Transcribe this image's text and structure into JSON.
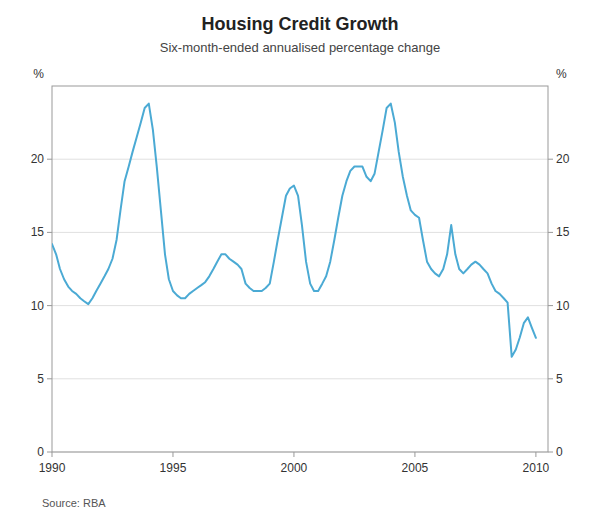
{
  "chart_data": {
    "type": "line",
    "title": "Housing Credit Growth",
    "subtitle": "Six-month-ended annualised percentage change",
    "source": "Source: RBA",
    "color": "#4BAAD4",
    "ylabel": "%",
    "y2label": "%",
    "grid": true,
    "xlim": [
      1990.0,
      2010.5
    ],
    "xticks": [
      1990,
      1995,
      2000,
      2005,
      2010
    ],
    "ylim": [
      0,
      25
    ],
    "yticks": [
      0,
      5,
      10,
      15,
      20
    ],
    "y2lim": [
      0,
      25
    ],
    "y2ticks": [
      0,
      5,
      10,
      15,
      20
    ],
    "x": [
      1990.0,
      1990.17,
      1990.33,
      1990.5,
      1990.67,
      1990.83,
      1991.0,
      1991.17,
      1991.33,
      1991.5,
      1991.67,
      1991.83,
      1992.0,
      1992.17,
      1992.33,
      1992.5,
      1992.67,
      1992.83,
      1993.0,
      1993.17,
      1993.33,
      1993.5,
      1993.67,
      1993.83,
      1994.0,
      1994.17,
      1994.33,
      1994.5,
      1994.67,
      1994.83,
      1995.0,
      1995.17,
      1995.33,
      1995.5,
      1995.67,
      1995.83,
      1996.0,
      1996.17,
      1996.33,
      1996.5,
      1996.67,
      1996.83,
      1997.0,
      1997.17,
      1997.33,
      1997.5,
      1997.67,
      1997.83,
      1998.0,
      1998.17,
      1998.33,
      1998.5,
      1998.67,
      1998.83,
      1999.0,
      1999.17,
      1999.33,
      1999.5,
      1999.67,
      1999.83,
      2000.0,
      2000.17,
      2000.33,
      2000.5,
      2000.67,
      2000.83,
      2001.0,
      2001.17,
      2001.33,
      2001.5,
      2001.67,
      2001.83,
      2002.0,
      2002.17,
      2002.33,
      2002.5,
      2002.67,
      2002.83,
      2003.0,
      2003.17,
      2003.33,
      2003.5,
      2003.67,
      2003.83,
      2004.0,
      2004.17,
      2004.33,
      2004.5,
      2004.67,
      2004.83,
      2005.0,
      2005.17,
      2005.33,
      2005.5,
      2005.67,
      2005.83,
      2006.0,
      2006.17,
      2006.33,
      2006.5,
      2006.67,
      2006.83,
      2007.0,
      2007.17,
      2007.33,
      2007.5,
      2007.67,
      2007.83,
      2008.0,
      2008.17,
      2008.33,
      2008.5,
      2008.67,
      2008.83,
      2009.0,
      2009.17,
      2009.33,
      2009.5,
      2009.67,
      2009.83,
      2010.0
    ],
    "values": [
      14.2,
      13.5,
      12.5,
      11.8,
      11.3,
      11.0,
      10.8,
      10.5,
      10.3,
      10.1,
      10.5,
      11.0,
      11.5,
      12.0,
      12.5,
      13.2,
      14.5,
      16.5,
      18.5,
      19.5,
      20.5,
      21.5,
      22.5,
      23.5,
      23.8,
      22.0,
      19.5,
      16.5,
      13.5,
      11.8,
      11.0,
      10.7,
      10.5,
      10.5,
      10.8,
      11.0,
      11.2,
      11.4,
      11.6,
      12.0,
      12.5,
      13.0,
      13.5,
      13.5,
      13.2,
      13.0,
      12.8,
      12.5,
      11.5,
      11.2,
      11.0,
      11.0,
      11.0,
      11.2,
      11.5,
      13.0,
      14.5,
      16.0,
      17.5,
      18.0,
      18.2,
      17.5,
      15.5,
      13.0,
      11.5,
      11.0,
      11.0,
      11.5,
      12.0,
      13.0,
      14.5,
      16.0,
      17.5,
      18.5,
      19.2,
      19.5,
      19.5,
      19.5,
      18.8,
      18.5,
      19.0,
      20.5,
      22.0,
      23.5,
      23.8,
      22.5,
      20.5,
      18.8,
      17.5,
      16.5,
      16.2,
      16.0,
      14.5,
      13.0,
      12.5,
      12.2,
      12.0,
      12.5,
      13.5,
      15.5,
      13.5,
      12.5,
      12.2,
      12.5,
      12.8,
      13.0,
      12.8,
      12.5,
      12.2,
      11.5,
      11.0,
      10.8,
      10.5,
      10.2,
      6.5,
      7.0,
      7.8,
      8.8,
      9.2,
      8.5,
      7.8
    ]
  }
}
